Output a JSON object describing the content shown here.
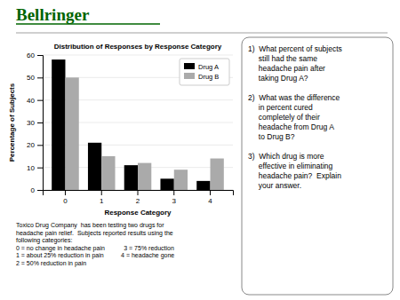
{
  "title": "Bellringer",
  "color": "#006400",
  "questions": [
    "1)  What percent of subjects\n     still had the same\n     headache pain after\n     taking Drug A?",
    "2)  What was the difference\n     in percent cured\n     completely of their\n     headache from Drug A\n     to Drug B?",
    "3)  Which drug is more\n     effective in eliminating\n     headache pain?  Explain\n     your answer."
  ],
  "footnote": [
    "Toxico Drug Company  has been testing two drugs for",
    "headache pain relief.  Subjects reported results using the",
    "following categories:",
    "0 = no change in headache pain           3 = 75% reduction",
    "1 = about 25% reduction in pain          4 = headache gone",
    "2 = 50% reduction in pain"
  ],
  "chart_data": {
    "type": "bar",
    "title": "Distribution of Responses by Response Category",
    "xlabel": "Response Category",
    "ylabel": "Percentage of Subjects",
    "categories": [
      0,
      1,
      2,
      3,
      4
    ],
    "series": [
      {
        "name": "Drug A",
        "color": "#000000",
        "values": [
          58,
          21,
          11,
          5,
          4
        ]
      },
      {
        "name": "Drug B",
        "color": "#aaaaaa",
        "values": [
          50,
          15,
          12,
          9,
          14
        ]
      }
    ],
    "ylim": [
      0,
      60
    ],
    "yticks": [
      0,
      10,
      20,
      30,
      40,
      50,
      60
    ],
    "grid": true,
    "legend": "upper right"
  }
}
